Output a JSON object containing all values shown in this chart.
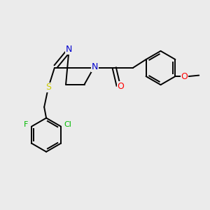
{
  "bg_color": "#ebebeb",
  "bond_color": "#000000",
  "N_color": "#0000cc",
  "S_color": "#cccc00",
  "O_color": "#ff0000",
  "F_color": "#00bb00",
  "Cl_color": "#00bb00",
  "line_width": 1.4,
  "fig_size": [
    3.0,
    3.0
  ],
  "dpi": 100,
  "xlim": [
    0,
    10
  ],
  "ylim": [
    0,
    10
  ]
}
